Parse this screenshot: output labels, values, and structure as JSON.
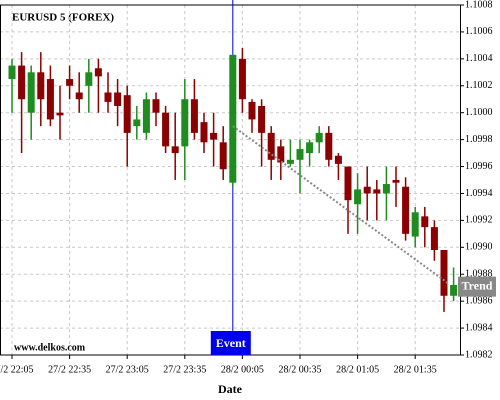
{
  "chart_data": {
    "type": "candlestick",
    "title": "EURUSD 5 (FOREX)",
    "watermark": "www.delkos.com",
    "x_label": "Date",
    "categories": [
      "27/2 22:05",
      null,
      null,
      null,
      null,
      null,
      "27/2 22:35",
      null,
      null,
      null,
      null,
      null,
      "27/2 23:05",
      null,
      null,
      null,
      null,
      null,
      "27/2 23:35",
      null,
      null,
      null,
      null,
      null,
      "28/2 00:05",
      null,
      null,
      null,
      null,
      null,
      "28/2 00:35",
      null,
      null,
      null,
      null,
      null,
      "28/2 01:05",
      null,
      null,
      null,
      null,
      null,
      "28/2 01:35",
      null,
      null,
      null,
      null
    ],
    "open": [
      1.10025,
      1.10035,
      1.1,
      1.1003,
      1.10025,
      1.1,
      1.10025,
      1.10015,
      1.1002,
      1.10033,
      1.10015,
      1.10015,
      1.10013,
      1.0999,
      1.09985,
      1.1001,
      1.1,
      1.09975,
      1.09975,
      1.1001,
      1.09993,
      1.09985,
      1.09978,
      1.09948,
      1.1004,
      1.10008,
      1.10005,
      1.09985,
      1.09975,
      1.09962,
      1.09965,
      1.0997,
      1.09978,
      1.09985,
      1.09968,
      1.0996,
      1.09932,
      1.09945,
      1.09943,
      1.0994,
      1.0995,
      1.09945,
      1.09908,
      1.09923,
      1.09915,
      1.09898,
      1.09864
    ],
    "high": [
      1.1004,
      1.10045,
      1.10035,
      1.10045,
      1.10035,
      1.1002,
      1.10035,
      1.1003,
      1.1004,
      1.1004,
      1.1003,
      1.10025,
      1.1002,
      1.10005,
      1.10015,
      1.10015,
      1.10005,
      1.1,
      1.10025,
      1.10025,
      1.1,
      1.1,
      1.0999,
      1.10043,
      1.10048,
      1.1001,
      1.1001,
      1.0999,
      1.0998,
      1.0998,
      1.0998,
      1.0998,
      1.0999,
      1.0999,
      1.0997,
      1.0996,
      1.09955,
      1.0996,
      1.0995,
      1.0996,
      1.0996,
      1.09952,
      1.0993,
      1.0993,
      1.0992,
      1.09898,
      1.09885
    ],
    "low": [
      1.1,
      1.0997,
      1.0998,
      1.0999,
      1.0999,
      1.0998,
      1.1001,
      1.1,
      1.1,
      1.1,
      1.1,
      1.0999,
      1.0996,
      1.0998,
      1.0998,
      1.0999,
      1.0997,
      1.0995,
      1.0995,
      1.0998,
      1.0997,
      1.0996,
      1.0995,
      1.09945,
      1.1,
      1.09985,
      1.0996,
      1.0995,
      1.0995,
      1.0996,
      1.0994,
      1.0996,
      1.0997,
      1.0996,
      1.0995,
      1.0991,
      1.0991,
      1.0992,
      1.0992,
      1.0992,
      1.0993,
      1.09905,
      1.099,
      1.099,
      1.0989,
      1.09852,
      1.0986
    ],
    "close": [
      1.10035,
      1.1001,
      1.1003,
      1.1001,
      1.09995,
      1.09998,
      1.1002,
      1.1001,
      1.1003,
      1.10027,
      1.10008,
      1.10005,
      1.09985,
      1.09995,
      1.1001,
      1.1,
      1.09975,
      1.0997,
      1.1001,
      1.09985,
      1.09978,
      1.0998,
      1.09958,
      1.10043,
      1.1001,
      1.09995,
      1.09985,
      1.09965,
      1.09963,
      1.09965,
      1.09973,
      1.09978,
      1.09985,
      1.09965,
      1.09962,
      1.09935,
      1.09943,
      1.0994,
      1.0994,
      1.09947,
      1.09948,
      1.0991,
      1.09926,
      1.09915,
      1.09898,
      1.09864,
      1.09872
    ],
    "up_color": "#1e8c1e",
    "down_color": "#8b0000",
    "ylim": [
      1.0982,
      1.1008
    ],
    "yticks": [
      1.0982,
      1.0984,
      1.0986,
      1.0988,
      {
        "value": 1.099,
        "label": "1.0990"
      },
      1.0992,
      1.0994,
      1.0996,
      1.0998,
      {
        "value": 1.1,
        "label": "1.1000"
      },
      1.1002,
      1.1004,
      1.1006,
      1.1008
    ],
    "grid": true,
    "event": {
      "label": "Event",
      "color": "#0000ee"
    },
    "trend": {
      "label": "Trend",
      "values": [
        1.0999,
        1.09873
      ],
      "color": "#888888"
    }
  }
}
